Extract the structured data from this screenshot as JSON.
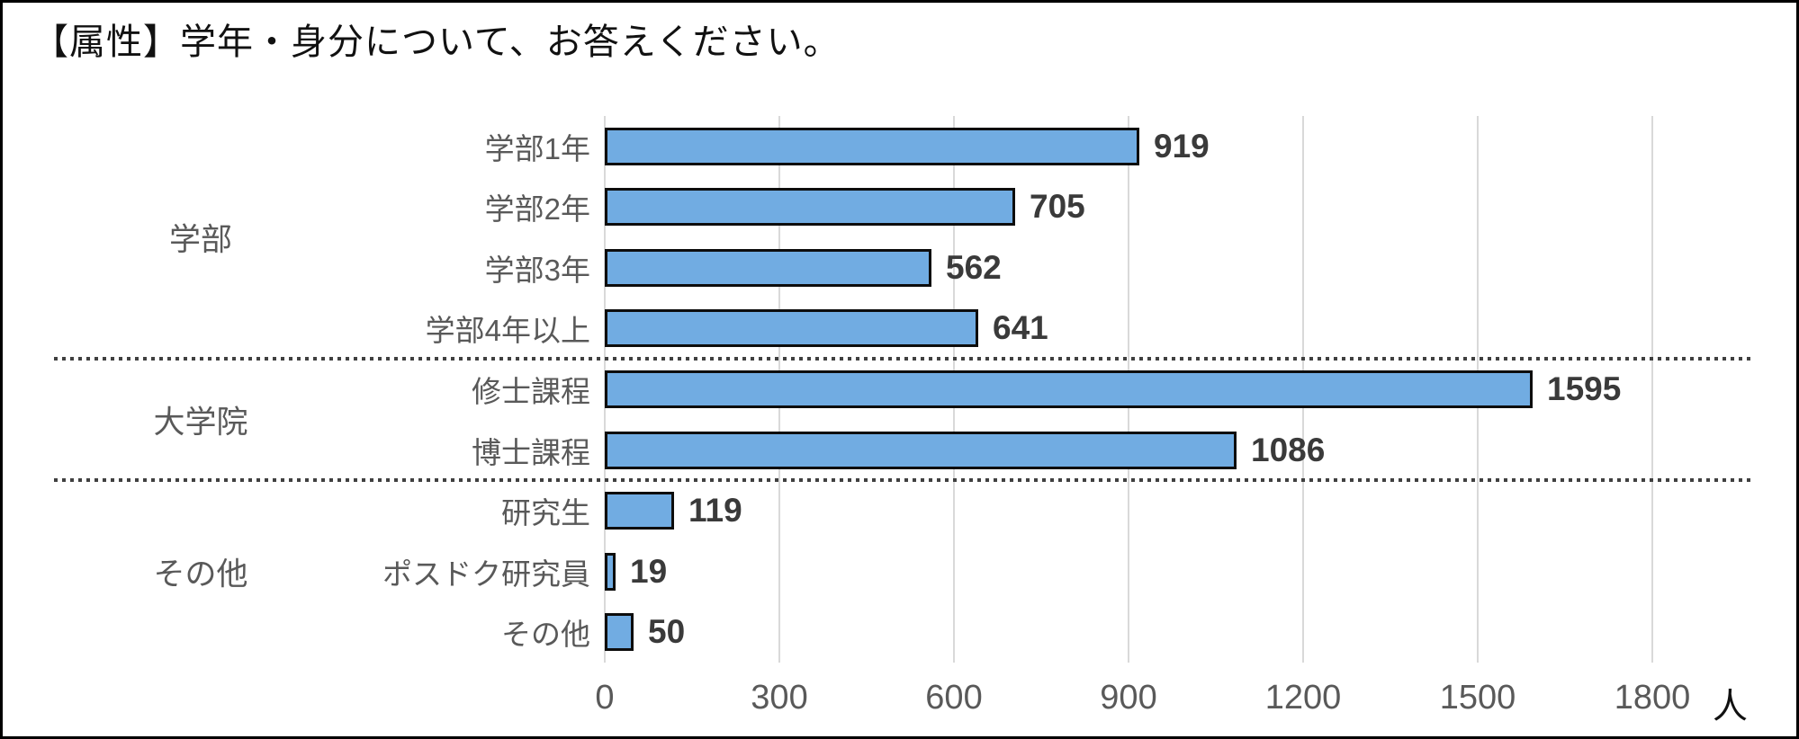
{
  "title": "【属性】学年・身分について、お答えください。",
  "colors": {
    "bar_fill": "#71ACE2",
    "bar_border": "#0d0d0d",
    "gridline": "#d9d9d9",
    "category_label": "#595959",
    "group_label": "#595959",
    "value_label": "#3a3a3a",
    "tick_label": "#595959",
    "separator": "#404040",
    "title_color": "#111111",
    "frame_border": "#000000",
    "background": "#ffffff"
  },
  "chart_data": {
    "type": "bar",
    "orientation": "horizontal",
    "title": "【属性】学年・身分について、お答えください。",
    "unit": "人",
    "xlabel": "",
    "ylabel": "",
    "xlim": [
      0,
      1800
    ],
    "x_ticks": [
      "0",
      "300",
      "600",
      "900",
      "1200",
      "1500",
      "1800"
    ],
    "x_tick_values": [
      0,
      300,
      600,
      900,
      1200,
      1500,
      1800
    ],
    "grid": true,
    "legend": false,
    "groups": [
      {
        "label": "学部",
        "items": [
          {
            "label": "学部1年",
            "value": 919
          },
          {
            "label": "学部2年",
            "value": 705
          },
          {
            "label": "学部3年",
            "value": 562
          },
          {
            "label": "学部4年以上",
            "value": 641
          }
        ]
      },
      {
        "label": "大学院",
        "items": [
          {
            "label": "修士課程",
            "value": 1595
          },
          {
            "label": "博士課程",
            "value": 1086
          }
        ]
      },
      {
        "label": "その他",
        "items": [
          {
            "label": "研究生",
            "value": 119
          },
          {
            "label": "ポスドク研究員",
            "value": 19
          },
          {
            "label": "その他",
            "value": 50
          }
        ]
      }
    ]
  }
}
